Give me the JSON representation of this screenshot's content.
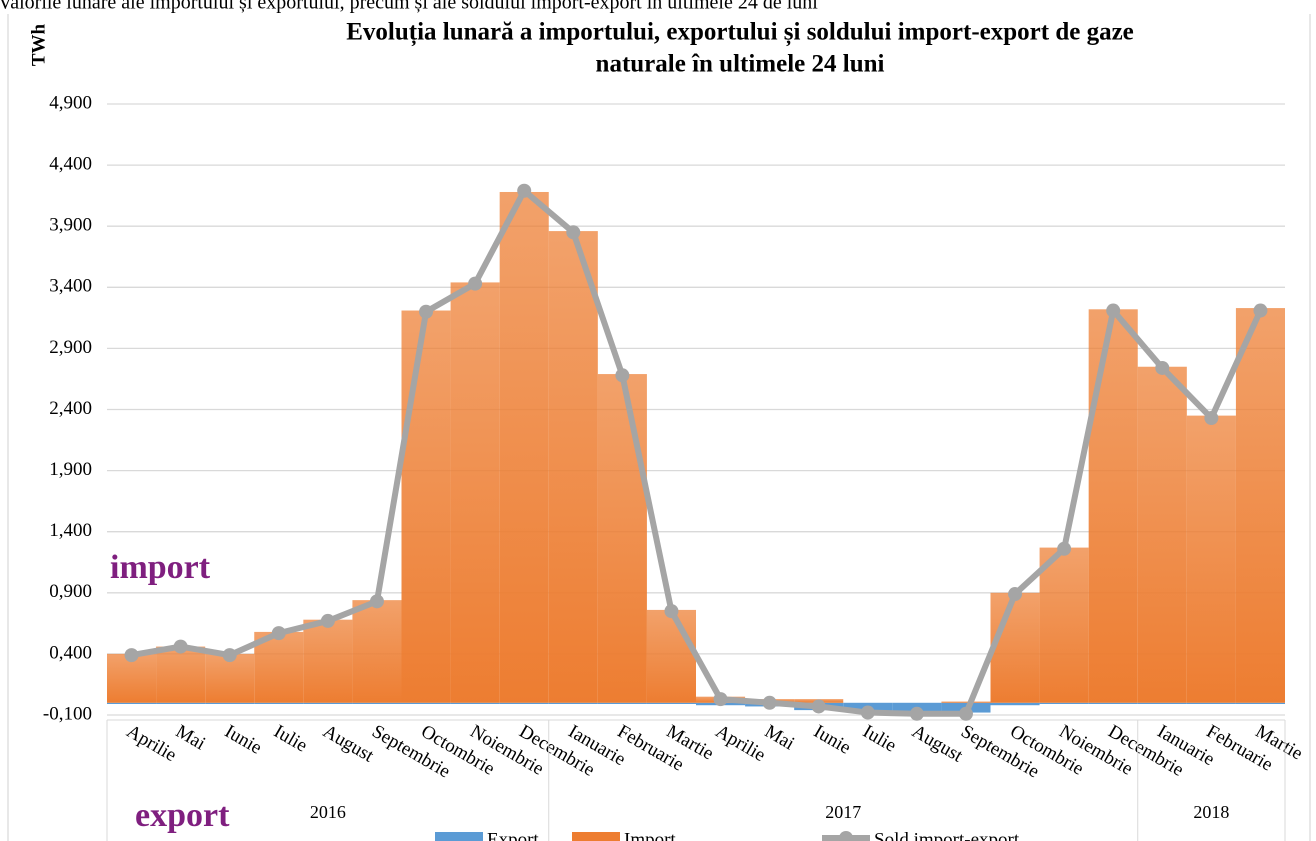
{
  "chart_data": {
    "type": "combo",
    "header": "Valorile lunare ale importului și exportului, precum și ale soldului import-export în ultimele 24 de luni",
    "title": [
      "Evoluția lunară a importului, exportului și soldului import-export de gaze",
      "naturale în ultimele 24 luni"
    ],
    "y_label": "TWh",
    "annotations": [
      "import",
      "export"
    ],
    "categories": [
      "Aprilie",
      "Mai",
      "Iunie",
      "Iulie",
      "August",
      "Septembrie",
      "Octombrie",
      "Noiembrie",
      "Decembrie",
      "Ianuarie",
      "Februarie",
      "Martie",
      "Aprilie",
      "Mai",
      "Iunie",
      "Iulie",
      "August",
      "Septembrie",
      "Octombrie",
      "Noiembrie",
      "Decembrie",
      "Ianuarie",
      "Februarie",
      "Martie"
    ],
    "groups": [
      {
        "label": "2016",
        "count": 9
      },
      {
        "label": "2017",
        "count": 12
      },
      {
        "label": "2018",
        "count": 3
      }
    ],
    "series": [
      {
        "name": "Export",
        "type": "bar",
        "color": "#5b9bd5",
        "values": [
          -0.01,
          -0.01,
          -0.01,
          -0.01,
          -0.01,
          -0.01,
          -0.01,
          -0.01,
          -0.01,
          -0.01,
          -0.01,
          -0.01,
          -0.02,
          -0.03,
          -0.06,
          -0.07,
          -0.07,
          -0.08,
          -0.02,
          -0.01,
          -0.01,
          -0.01,
          -0.01,
          -0.01
        ]
      },
      {
        "name": "Import",
        "type": "bar",
        "color": "#ed7d31",
        "values": [
          0.4,
          0.46,
          0.4,
          0.58,
          0.68,
          0.84,
          3.21,
          3.44,
          4.18,
          3.86,
          2.69,
          0.76,
          0.05,
          0.03,
          0.03,
          0.0,
          0.0,
          0.01,
          0.9,
          1.27,
          3.22,
          2.75,
          2.35,
          3.23
        ]
      },
      {
        "name": "Sold import-export",
        "type": "line",
        "color": "#a5a5a5",
        "values": [
          0.39,
          0.46,
          0.39,
          0.57,
          0.67,
          0.83,
          3.2,
          3.43,
          4.19,
          3.85,
          2.68,
          0.75,
          0.03,
          0.0,
          -0.03,
          -0.08,
          -0.09,
          -0.09,
          0.89,
          1.26,
          3.21,
          2.74,
          2.33,
          3.21
        ]
      }
    ],
    "ylim": [
      -0.1,
      4.9
    ],
    "yticks": [
      {
        "value": -0.1,
        "label": "-0,100"
      },
      {
        "value": 0.4,
        "label": "0,400"
      },
      {
        "value": 0.9,
        "label": "0,900"
      },
      {
        "value": 1.4,
        "label": "1,400"
      },
      {
        "value": 1.9,
        "label": "1,900"
      },
      {
        "value": 2.4,
        "label": "2,400"
      },
      {
        "value": 2.9,
        "label": "2,900"
      },
      {
        "value": 3.4,
        "label": "3,400"
      },
      {
        "value": 3.9,
        "label": "3,900"
      },
      {
        "value": 4.4,
        "label": "4,400"
      },
      {
        "value": 4.9,
        "label": "4,900"
      }
    ],
    "grid": true,
    "legend": "bottom"
  }
}
